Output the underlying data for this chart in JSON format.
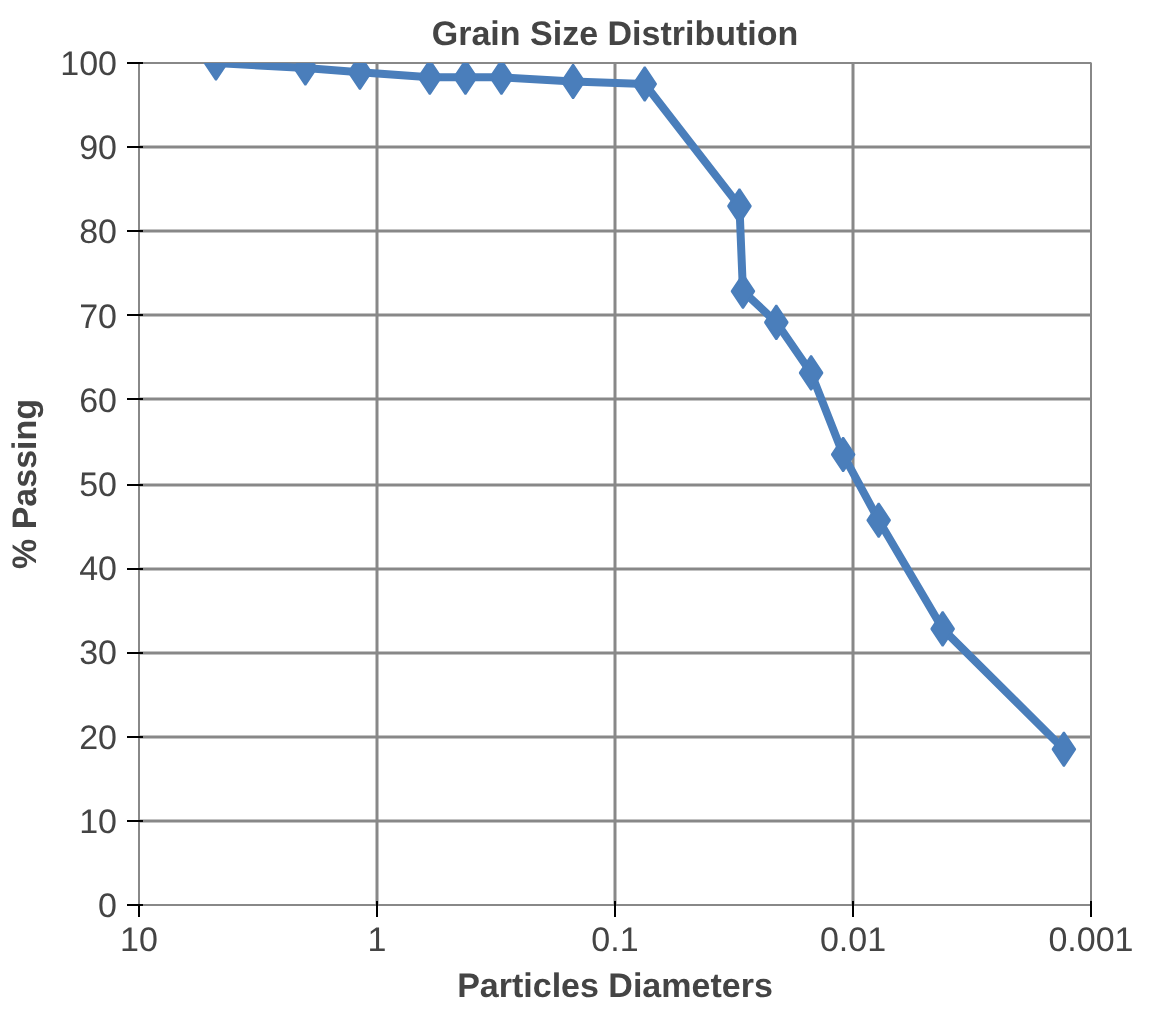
{
  "chart_data": {
    "type": "line",
    "title": "Grain Size Distribution",
    "xlabel": "Particles Diameters",
    "ylabel": "% Passing",
    "log": "x",
    "x": [
      4.75,
      2.0,
      1.18,
      0.6,
      0.425,
      0.3,
      0.15,
      0.075,
      0.03,
      0.029,
      0.021,
      0.015,
      0.011,
      0.0078,
      0.0042,
      0.0013
    ],
    "series": [
      {
        "color": "#4a7ebb",
        "values": [
          100,
          99.4,
          98.9,
          98.3,
          98.3,
          98.3,
          97.8,
          97.5,
          83.0,
          72.9,
          69.2,
          63.2,
          53.5,
          45.7,
          32.8,
          18.5
        ]
      }
    ],
    "xlim": [
      10,
      0.001
    ],
    "xticks": [
      10,
      1,
      0.1,
      0.01,
      0.001
    ],
    "ylim": [
      0,
      100
    ],
    "yticks": [
      0,
      10,
      20,
      30,
      40,
      50,
      60,
      70,
      80,
      90,
      100
    ],
    "grid": true,
    "marker": "diamond",
    "line_style": "solid"
  }
}
